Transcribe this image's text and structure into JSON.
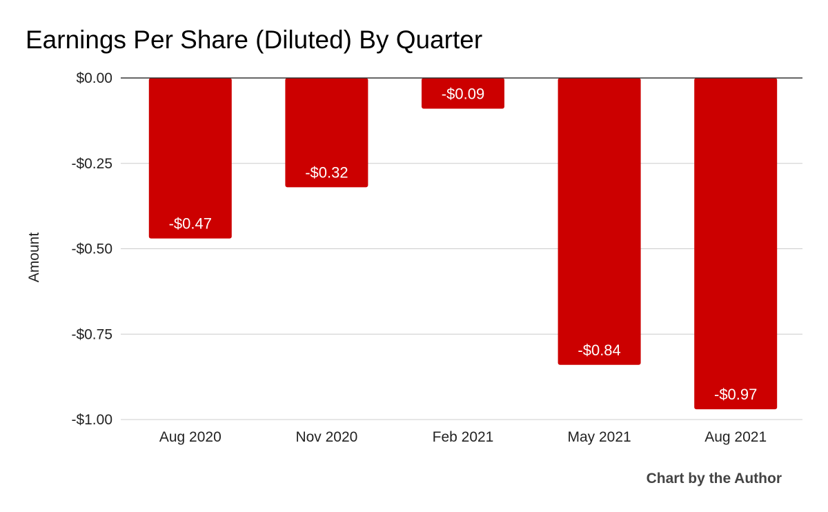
{
  "chart_data": {
    "type": "bar",
    "title": "Earnings Per Share (Diluted) By Quarter",
    "xlabel": "",
    "ylabel": "Amount",
    "categories": [
      "Aug 2020",
      "Nov 2020",
      "Feb 2021",
      "May 2021",
      "Aug 2021"
    ],
    "values": [
      -0.47,
      -0.32,
      -0.09,
      -0.84,
      -0.97
    ],
    "data_labels": [
      "-$0.47",
      "-$0.32",
      "-$0.09",
      "-$0.84",
      "-$0.97"
    ],
    "ylim": [
      -1.0,
      0.0
    ],
    "y_ticks": [
      0.0,
      -0.25,
      -0.5,
      -0.75,
      -1.0
    ],
    "y_tick_labels": [
      "$0.00",
      "-$0.25",
      "-$0.50",
      "-$0.75",
      "-$1.00"
    ],
    "grid": true,
    "legend": "none",
    "bar_color": "#cc0000",
    "credit": "Chart by the Author"
  }
}
